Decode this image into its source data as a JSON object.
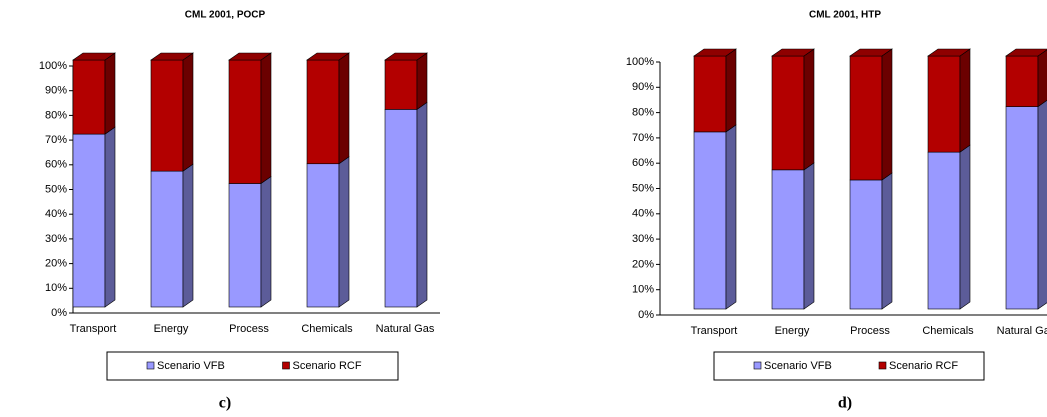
{
  "chart_data": [
    {
      "type": "bar",
      "stacked": true,
      "title": "CML 2001, POCP",
      "caption": "c)",
      "categories": [
        "Transport",
        "Energy",
        "Process",
        "Chemicals",
        "Natural Gas"
      ],
      "series": [
        {
          "name": "Scenario VFB",
          "color": "#9999ff",
          "values": [
            70,
            55,
            50,
            58,
            80
          ]
        },
        {
          "name": "Scenario RCF",
          "color": "#b30000",
          "values": [
            30,
            45,
            50,
            42,
            20
          ]
        }
      ],
      "ylim": [
        0,
        100
      ],
      "yticks": [
        {
          "value": 0,
          "label": "0%"
        },
        {
          "value": 10,
          "label": "10%"
        },
        {
          "value": 20,
          "label": "20%"
        },
        {
          "value": 30,
          "label": "30%"
        },
        {
          "value": 40,
          "label": "40%"
        },
        {
          "value": 50,
          "label": "50%"
        },
        {
          "value": 60,
          "label": "60%"
        },
        {
          "value": 70,
          "label": "70%"
        },
        {
          "value": 80,
          "label": "80%"
        },
        {
          "value": 90,
          "label": "90%"
        },
        {
          "value": 100,
          "label": "100%"
        }
      ],
      "legend": "bottom"
    },
    {
      "type": "bar",
      "stacked": true,
      "title": "CML 2001, HTP",
      "caption": "d)",
      "categories": [
        "Transport",
        "Energy",
        "Process",
        "Chemicals",
        "Natural Gas"
      ],
      "series": [
        {
          "name": "Scenario VFB",
          "color": "#9999ff",
          "values": [
            70,
            55,
            51,
            62,
            80
          ]
        },
        {
          "name": "Scenario RCF",
          "color": "#b30000",
          "values": [
            30,
            45,
            49,
            38,
            20
          ]
        }
      ],
      "ylim": [
        0,
        100
      ],
      "yticks": [
        {
          "value": 0,
          "label": "0%"
        },
        {
          "value": 10,
          "label": "10%"
        },
        {
          "value": 20,
          "label": "20%"
        },
        {
          "value": 30,
          "label": "30%"
        },
        {
          "value": 40,
          "label": "40%"
        },
        {
          "value": 50,
          "label": "50%"
        },
        {
          "value": 60,
          "label": "60%"
        },
        {
          "value": 70,
          "label": "70%"
        },
        {
          "value": 80,
          "label": "80%"
        },
        {
          "value": 90,
          "label": "90%"
        },
        {
          "value": 100,
          "label": "100%"
        }
      ],
      "legend": "bottom"
    }
  ]
}
